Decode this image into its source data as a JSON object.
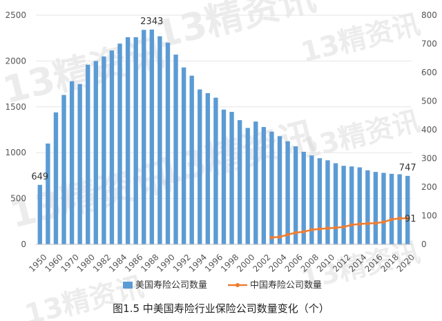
{
  "caption": "图1.5 中美国寿险行业保险公司数量变化（个）",
  "watermark": "13精资讯",
  "colors": {
    "us": "#5B9BD5",
    "cn": "#ED7D31",
    "grid": "#e6e6e6",
    "axis": "#bfbfbf"
  },
  "chart_data": {
    "type": "bar",
    "title": "",
    "categories": [
      1950,
      1955,
      1960,
      1965,
      1970,
      1975,
      1980,
      1981,
      1982,
      1983,
      1984,
      1985,
      1986,
      1987,
      1988,
      1989,
      1990,
      1991,
      1992,
      1993,
      1994,
      1995,
      1996,
      1997,
      1998,
      1999,
      2000,
      2001,
      2002,
      2003,
      2004,
      2005,
      2006,
      2007,
      2008,
      2009,
      2010,
      2011,
      2012,
      2013,
      2014,
      2015,
      2016,
      2017,
      2018,
      2019,
      2020
    ],
    "x_tick_labels": [
      "1950",
      "1960",
      "1970",
      "1980",
      "1982",
      "1984",
      "1986",
      "1988",
      "1990",
      "1992",
      "1994",
      "1996",
      "1998",
      "2000",
      "2002",
      "2004",
      "2006",
      "2008",
      "2010",
      "2012",
      "2014",
      "2016",
      "2018",
      "2020"
    ],
    "series": [
      {
        "name": "美国寿险公司数量",
        "type": "bar",
        "axis": "left",
        "values": [
          649,
          1100,
          1440,
          1630,
          1780,
          1750,
          1960,
          2000,
          2050,
          2115,
          2190,
          2260,
          2260,
          2340,
          2343,
          2270,
          2200,
          2070,
          1930,
          1840,
          1690,
          1650,
          1600,
          1470,
          1445,
          1355,
          1270,
          1340,
          1280,
          1230,
          1180,
          1125,
          1070,
          1010,
          970,
          940,
          917,
          885,
          857,
          850,
          840,
          808,
          790,
          780,
          770,
          765,
          747
        ],
        "data_labels": {
          "1950": "649",
          "1988": "2343",
          "2020": "747"
        }
      },
      {
        "name": "中国寿险公司数量",
        "type": "line",
        "axis": "right",
        "x": [
          2003,
          2004,
          2005,
          2006,
          2007,
          2008,
          2009,
          2010,
          2011,
          2012,
          2013,
          2014,
          2015,
          2016,
          2017,
          2018,
          2019,
          2020
        ],
        "values": [
          24,
          26,
          34,
          41,
          44,
          51,
          54,
          56,
          58,
          61,
          68,
          71,
          73,
          74,
          78,
          87,
          91,
          91
        ],
        "data_labels": {
          "2020": "91"
        }
      }
    ],
    "y_left": {
      "range": [
        0,
        2500
      ],
      "ticks": [
        0,
        500,
        1000,
        1500,
        2000,
        2500
      ]
    },
    "y_right": {
      "range": [
        0,
        800
      ],
      "ticks": [
        0,
        100,
        200,
        300,
        400,
        500,
        600,
        700,
        800
      ]
    },
    "grid": true,
    "legend_position": "bottom"
  }
}
